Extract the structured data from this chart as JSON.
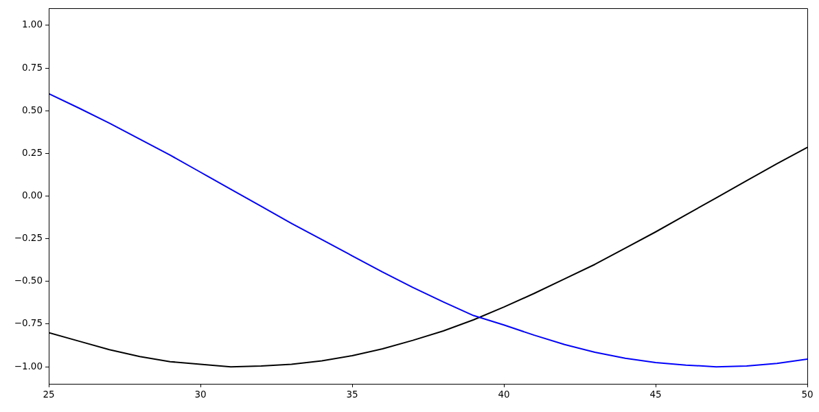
{
  "chart_data": {
    "type": "line",
    "x": [
      25,
      26,
      27,
      28,
      29,
      30,
      31,
      32,
      33,
      34,
      35,
      36,
      37,
      38,
      39,
      40,
      41,
      42,
      43,
      44,
      45,
      46,
      47,
      48,
      49,
      50
    ],
    "series": [
      {
        "color": "#0000ff",
        "values": [
          0.6,
          0.515,
          0.427,
          0.334,
          0.24,
          0.14,
          0.04,
          -0.06,
          -0.16,
          -0.255,
          -0.35,
          -0.445,
          -0.535,
          -0.62,
          -0.7,
          -0.755,
          -0.815,
          -0.87,
          -0.915,
          -0.95,
          -0.975,
          -0.99,
          -1.0,
          -0.995,
          -0.98,
          -0.955
        ]
      },
      {
        "color": "#000000",
        "values": [
          -0.8,
          -0.85,
          -0.9,
          -0.94,
          -0.97,
          -0.985,
          -1.0,
          -0.995,
          -0.985,
          -0.965,
          -0.935,
          -0.895,
          -0.845,
          -0.79,
          -0.725,
          -0.65,
          -0.57,
          -0.485,
          -0.4,
          -0.305,
          -0.21,
          -0.11,
          -0.01,
          0.09,
          0.19,
          0.285
        ]
      }
    ],
    "xlim": [
      25,
      50
    ],
    "ylim": [
      -1.1,
      1.1
    ],
    "xticks": [
      25,
      30,
      35,
      40,
      45,
      50
    ],
    "yticks": [
      {
        "value": -1,
        "label": "−1.00"
      },
      {
        "value": -0.75,
        "label": "−0.75"
      },
      {
        "value": -0.5,
        "label": "−0.50"
      },
      {
        "value": -0.25,
        "label": "−0.25"
      },
      {
        "value": 0,
        "label": "0.00"
      },
      {
        "value": 0.25,
        "label": "0.25"
      },
      {
        "value": 0.5,
        "label": "0.50"
      },
      {
        "value": 0.75,
        "label": "0.75"
      },
      {
        "value": 1,
        "label": "1.00"
      }
    ]
  }
}
